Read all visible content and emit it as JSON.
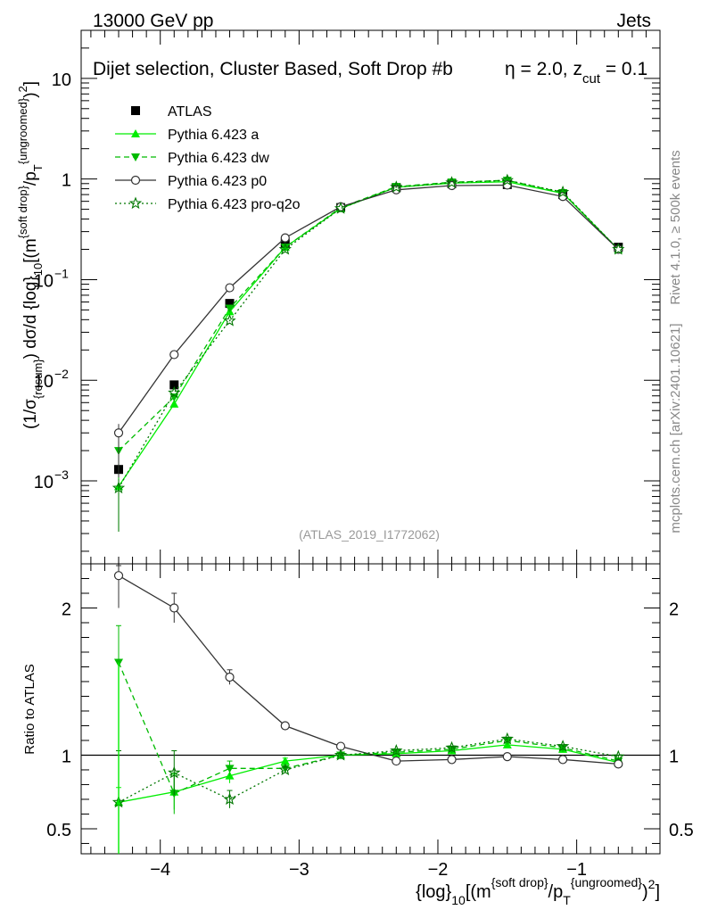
{
  "header": {
    "energy_label": "13000 GeV pp",
    "process_label": "Jets"
  },
  "side_labels": {
    "rivet": "Rivet 4.1.0, ≥ 500k events",
    "mcplots": "mcplots.cern.ch [arXiv:2401.10621]"
  },
  "colors": {
    "atlas": "#000000",
    "pythia_a": "#00ee00",
    "pythia_dw": "#00bb00",
    "pythia_p0": "#333333",
    "pythia_q2o": "#007700"
  },
  "chart_data": [
    {
      "type": "line",
      "panel": "main",
      "title": "Dijet selection, Cluster Based, Soft Drop #b",
      "title_params": [
        "η = 2.0, z",
        "cut",
        " = 0.1"
      ],
      "analysis_id": "(ATLAS_2019_I1772062)",
      "ylabel_parts": [
        "(1/σ",
        "{resum}",
        ") dσ/d {log}",
        "10",
        "[(m",
        "{soft drop}",
        "/p",
        "T",
        "{ungroomed}",
        ")",
        "2",
        "]"
      ],
      "y_scale": "log",
      "ylim": [
        0.00015,
        30
      ],
      "xlim": [
        -4.57,
        -0.4
      ],
      "yticks": [
        {
          "value": 10,
          "label": "10"
        },
        {
          "value": 1,
          "label": "1"
        },
        {
          "value": 0.1,
          "label": "10",
          "exp": "−1"
        },
        {
          "value": 0.01,
          "label": "10",
          "exp": "−2"
        },
        {
          "value": 0.001,
          "label": "10",
          "exp": "−3"
        }
      ],
      "x": [
        -4.3,
        -3.9,
        -3.5,
        -3.1,
        -2.7,
        -2.3,
        -1.9,
        -1.5,
        -1.1,
        -0.7
      ],
      "series": [
        {
          "name": "ATLAS",
          "style": "data",
          "values": [
            0.0013,
            0.009,
            0.058,
            0.23,
            0.52,
            0.82,
            0.9,
            0.88,
            0.7,
            0.21
          ]
        },
        {
          "name": "Pythia 6.423 a",
          "style": "solid",
          "marker": "triangle-up",
          "values": [
            0.00088,
            0.0058,
            0.048,
            0.21,
            0.51,
            0.83,
            0.91,
            0.94,
            0.72,
            0.2
          ]
        },
        {
          "name": "Pythia 6.423 dw",
          "style": "dashed",
          "marker": "triangle-down",
          "values": [
            0.002,
            0.0068,
            0.052,
            0.21,
            0.52,
            0.84,
            0.93,
            0.97,
            0.73,
            0.2
          ]
        },
        {
          "name": "Pythia 6.423 p0",
          "style": "solid",
          "marker": "circle-open",
          "values": [
            0.003,
            0.018,
            0.083,
            0.26,
            0.53,
            0.78,
            0.86,
            0.87,
            0.67,
            0.2
          ]
        },
        {
          "name": "Pythia 6.423 pro-q2o",
          "style": "dotted",
          "marker": "star-open",
          "values": [
            0.00085,
            0.0075,
            0.039,
            0.2,
            0.51,
            0.83,
            0.92,
            0.97,
            0.74,
            0.2
          ]
        }
      ]
    },
    {
      "type": "line",
      "panel": "ratio",
      "ylabel": "Ratio to ATLAS",
      "xlabel_parts": [
        "{log}",
        "10",
        "[(m",
        "{soft drop}",
        "/p",
        "T",
        "{ungroomed}",
        ")",
        "2",
        "]"
      ],
      "ylim": [
        0.33,
        2.3
      ],
      "xlim": [
        -4.57,
        -0.4
      ],
      "xticks": [
        {
          "value": -4,
          "label": "−4"
        },
        {
          "value": -3,
          "label": "−3"
        },
        {
          "value": -2,
          "label": "−2"
        },
        {
          "value": -1,
          "label": "−1"
        }
      ],
      "yticks": [
        {
          "value": 2,
          "label": "2"
        },
        {
          "value": 1,
          "label": "1"
        },
        {
          "value": 0.5,
          "label": "0.5"
        }
      ],
      "x": [
        -4.3,
        -3.9,
        -3.5,
        -3.1,
        -2.7,
        -2.3,
        -1.9,
        -1.5,
        -1.1,
        -0.7
      ],
      "series": [
        {
          "name": "Pythia 6.423 a",
          "values": [
            0.68,
            0.75,
            0.86,
            0.96,
            1.0,
            1.01,
            1.03,
            1.07,
            1.04,
            0.95
          ],
          "errors": [
            0.1,
            0.12,
            0.05,
            0.02,
            0.01,
            0.01,
            0.01,
            0.01,
            0.01,
            0.01
          ]
        },
        {
          "name": "Pythia 6.423 dw",
          "values": [
            1.63,
            0.74,
            0.91,
            0.91,
            1.0,
            1.02,
            1.04,
            1.1,
            1.05,
            0.96
          ],
          "errors": [
            0.25,
            0.14,
            0.05,
            0.02,
            0.01,
            0.01,
            0.01,
            0.01,
            0.01,
            0.01
          ]
        },
        {
          "name": "Pythia 6.423 p0",
          "values": [
            2.22,
            2.0,
            1.53,
            1.2,
            1.06,
            0.96,
            0.97,
            0.99,
            0.97,
            0.94
          ],
          "errors": [
            0.22,
            0.1,
            0.05,
            0.01,
            0.01,
            0.01,
            0.01,
            0.01,
            0.01,
            0.01
          ]
        },
        {
          "name": "Pythia 6.423 pro-q2o",
          "values": [
            0.68,
            0.88,
            0.7,
            0.9,
            1.0,
            1.03,
            1.05,
            1.11,
            1.06,
            0.99
          ],
          "errors": [
            0.35,
            0.15,
            0.06,
            0.02,
            0.01,
            0.01,
            0.01,
            0.01,
            0.01,
            0.01
          ]
        }
      ]
    }
  ]
}
